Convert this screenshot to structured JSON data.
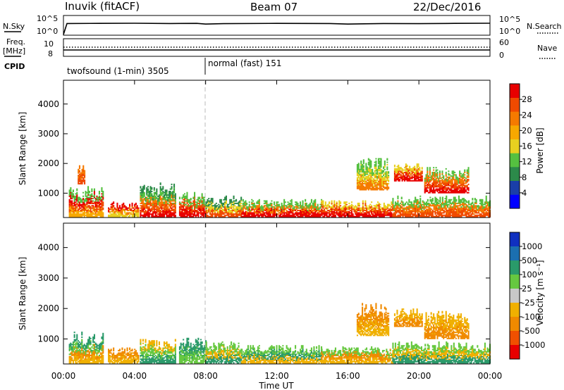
{
  "header": {
    "station": "Inuvik (fitACF)",
    "beam": "Beam 07",
    "date": "22/Dec/2016"
  },
  "top_panel_labels": {
    "nsky": "N.Sky",
    "nsearch": "N.Search",
    "freq_line1": "Freq.",
    "freq_line2": "[MHz]",
    "nave": "Nave",
    "cpid": "CPID",
    "nsky_ticks": [
      "10^5",
      "10^0"
    ],
    "nsearch_ticks": [
      "10^5",
      "10^0"
    ],
    "freq_ticks": [
      "10",
      "8"
    ],
    "nave_ticks": [
      "60",
      "0"
    ]
  },
  "modes": [
    {
      "label": "twofsound (1-min) 3505",
      "start_hour": 0
    },
    {
      "label": "normal (fast) 151",
      "start_hour": 8
    }
  ],
  "x_axis": {
    "label": "Time UT",
    "ticks": [
      "00:00",
      "04:00",
      "08:00",
      "12:00",
      "16:00",
      "20:00",
      "00:00"
    ]
  },
  "power_panel": {
    "ylabel": "Slant Range [km]",
    "yticks": [
      "1000",
      "2000",
      "3000",
      "4000"
    ],
    "colorbar_label": "Power [dB]",
    "colorbar_ticks": [
      "28",
      "24",
      "20",
      "16",
      "12",
      "8",
      "4"
    ],
    "colors": [
      "#0000ff",
      "#1a3ea8",
      "#2c8a4a",
      "#55c040",
      "#e8d020",
      "#f7a800",
      "#f57a00",
      "#f04a00",
      "#e80000"
    ]
  },
  "velocity_panel": {
    "ylabel": "Slant Range [km]",
    "yticks": [
      "1000",
      "2000",
      "3000",
      "4000"
    ],
    "colorbar_label": "Velocity [m s⁻¹]",
    "colorbar_ticks": [
      "1000",
      "500",
      "100",
      "25",
      "-25",
      "-100",
      "-500",
      "-1000"
    ],
    "colors": [
      "#1030c0",
      "#1b6fb0",
      "#2a9a6a",
      "#66c840",
      "#c8c8c8",
      "#f0b000",
      "#f08a00",
      "#f05000",
      "#e80000"
    ]
  },
  "chart_data": [
    {
      "type": "line",
      "title": "N.Sky / N.Search",
      "x_unit": "hours UT",
      "xlim": [
        0,
        24
      ],
      "series": [
        {
          "name": "N.Sky",
          "x": [
            0,
            0.2,
            2,
            4,
            6,
            7.5,
            8,
            9,
            12,
            15,
            16,
            18,
            20,
            22,
            24
          ],
          "values": [
            1,
            1000,
            1100,
            1200,
            1000,
            1100,
            700,
            900,
            1100,
            1000,
            700,
            1000,
            900,
            1100,
            1200
          ]
        }
      ]
    },
    {
      "type": "line",
      "title": "Freq. / Nave",
      "xlim": [
        0,
        24
      ],
      "series": [
        {
          "name": "Freq.",
          "x": [
            0,
            24
          ],
          "values": [
            8.9,
            8.9
          ]
        },
        {
          "name": "Nave",
          "x": [
            0,
            24
          ],
          "values": [
            33,
            33
          ]
        }
      ]
    },
    {
      "type": "heatmap",
      "title": "Power [dB]",
      "xlabel": "Time UT",
      "ylabel": "Slant Range [km]",
      "xlim": [
        0,
        24
      ],
      "ylim": [
        180,
        4800
      ],
      "clim": [
        0,
        30
      ],
      "patches": [
        {
          "t": [
            0.3,
            2.2
          ],
          "r": [
            200,
            1250
          ],
          "v": [
            18,
            24,
            28,
            12
          ]
        },
        {
          "t": [
            0.8,
            1.2
          ],
          "r": [
            1300,
            2000
          ],
          "v": [
            24,
            20
          ]
        },
        {
          "t": [
            2.5,
            4.2
          ],
          "r": [
            200,
            700
          ],
          "v": [
            16,
            20,
            28
          ]
        },
        {
          "t": [
            4.3,
            6.3
          ],
          "r": [
            200,
            1350
          ],
          "v": [
            28,
            24,
            20,
            12,
            8
          ]
        },
        {
          "t": [
            6.5,
            8.0
          ],
          "r": [
            200,
            1050
          ],
          "v": [
            28,
            24,
            12
          ]
        },
        {
          "t": [
            8.0,
            10.0
          ],
          "r": [
            200,
            900
          ],
          "v": [
            24,
            16,
            8
          ]
        },
        {
          "t": [
            10.0,
            14.5
          ],
          "r": [
            200,
            800
          ],
          "v": [
            28,
            20,
            12
          ]
        },
        {
          "t": [
            14.5,
            18.5
          ],
          "r": [
            200,
            750
          ],
          "v": [
            28,
            24,
            16
          ]
        },
        {
          "t": [
            16.5,
            18.3
          ],
          "r": [
            1100,
            2200
          ],
          "v": [
            20,
            16,
            12
          ]
        },
        {
          "t": [
            18.5,
            24.0
          ],
          "r": [
            200,
            900
          ],
          "v": [
            24,
            20,
            12
          ]
        },
        {
          "t": [
            18.6,
            20.2
          ],
          "r": [
            1400,
            2000
          ],
          "v": [
            28,
            24,
            16
          ]
        },
        {
          "t": [
            20.3,
            22.8
          ],
          "r": [
            1000,
            1900
          ],
          "v": [
            28,
            24,
            20,
            12
          ]
        }
      ]
    },
    {
      "type": "heatmap",
      "title": "Velocity [m s⁻¹]",
      "xlabel": "Time UT",
      "ylabel": "Slant Range [km]",
      "xlim": [
        0,
        24
      ],
      "ylim": [
        180,
        4800
      ],
      "clim": [
        -1000,
        1000
      ],
      "patches": [
        {
          "t": [
            0.3,
            2.2
          ],
          "r": [
            200,
            1250
          ],
          "v": [
            -100,
            -500,
            25,
            100
          ]
        },
        {
          "t": [
            2.5,
            4.2
          ],
          "r": [
            200,
            700
          ],
          "v": [
            -100,
            -500
          ]
        },
        {
          "t": [
            4.3,
            6.3
          ],
          "r": [
            200,
            1000
          ],
          "v": [
            100,
            25,
            -100
          ]
        },
        {
          "t": [
            6.5,
            8.0
          ],
          "r": [
            200,
            1050
          ],
          "v": [
            25,
            100
          ]
        },
        {
          "t": [
            8.0,
            10.0
          ],
          "r": [
            200,
            900
          ],
          "v": [
            100,
            -100,
            25
          ]
        },
        {
          "t": [
            10.0,
            14.5
          ],
          "r": [
            200,
            800
          ],
          "v": [
            -100,
            100,
            25
          ]
        },
        {
          "t": [
            14.5,
            18.5
          ],
          "r": [
            200,
            750
          ],
          "v": [
            -100,
            -500,
            25
          ]
        },
        {
          "t": [
            16.5,
            18.3
          ],
          "r": [
            1100,
            2200
          ],
          "v": [
            -100,
            -500
          ]
        },
        {
          "t": [
            18.5,
            24.0
          ],
          "r": [
            200,
            900
          ],
          "v": [
            100,
            -100,
            25
          ]
        },
        {
          "t": [
            18.6,
            20.2
          ],
          "r": [
            1400,
            2000
          ],
          "v": [
            -500,
            -100
          ]
        },
        {
          "t": [
            20.3,
            22.8
          ],
          "r": [
            1000,
            1900
          ],
          "v": [
            -500,
            -100
          ]
        }
      ]
    }
  ]
}
